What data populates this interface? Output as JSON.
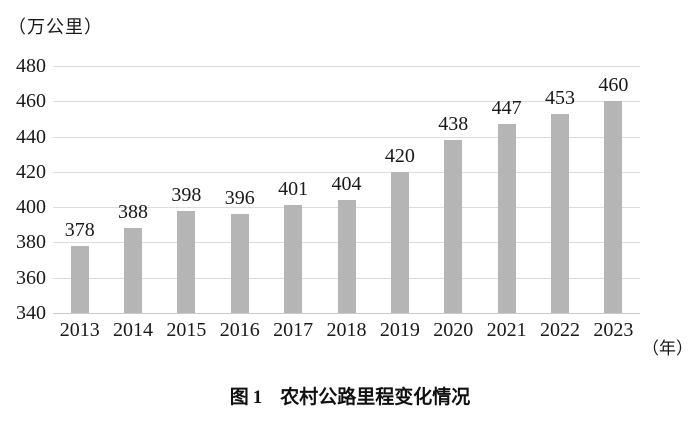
{
  "chart_data": {
    "type": "bar",
    "title": "图1 农村公路里程变化情况",
    "caption_prefix": "图",
    "caption_number": "1",
    "caption_text": "农村公路里程变化情况",
    "unit_label": "（万公里）",
    "x_unit_label": "（年）",
    "categories": [
      "2013",
      "2014",
      "2015",
      "2016",
      "2017",
      "2018",
      "2019",
      "2020",
      "2021",
      "2022",
      "2023"
    ],
    "values": [
      378,
      388,
      398,
      396,
      401,
      404,
      420,
      438,
      447,
      453,
      460
    ],
    "ylim": [
      340,
      480
    ],
    "yticks": [
      340,
      360,
      380,
      400,
      420,
      440,
      460,
      480
    ],
    "grid": "horizontal",
    "legend": "none",
    "bar_color": "#b5b5b5",
    "gridline_color": "#dcdcdc",
    "baseline_color": "#c9c9c9",
    "text_color": "#1a1a1a"
  }
}
